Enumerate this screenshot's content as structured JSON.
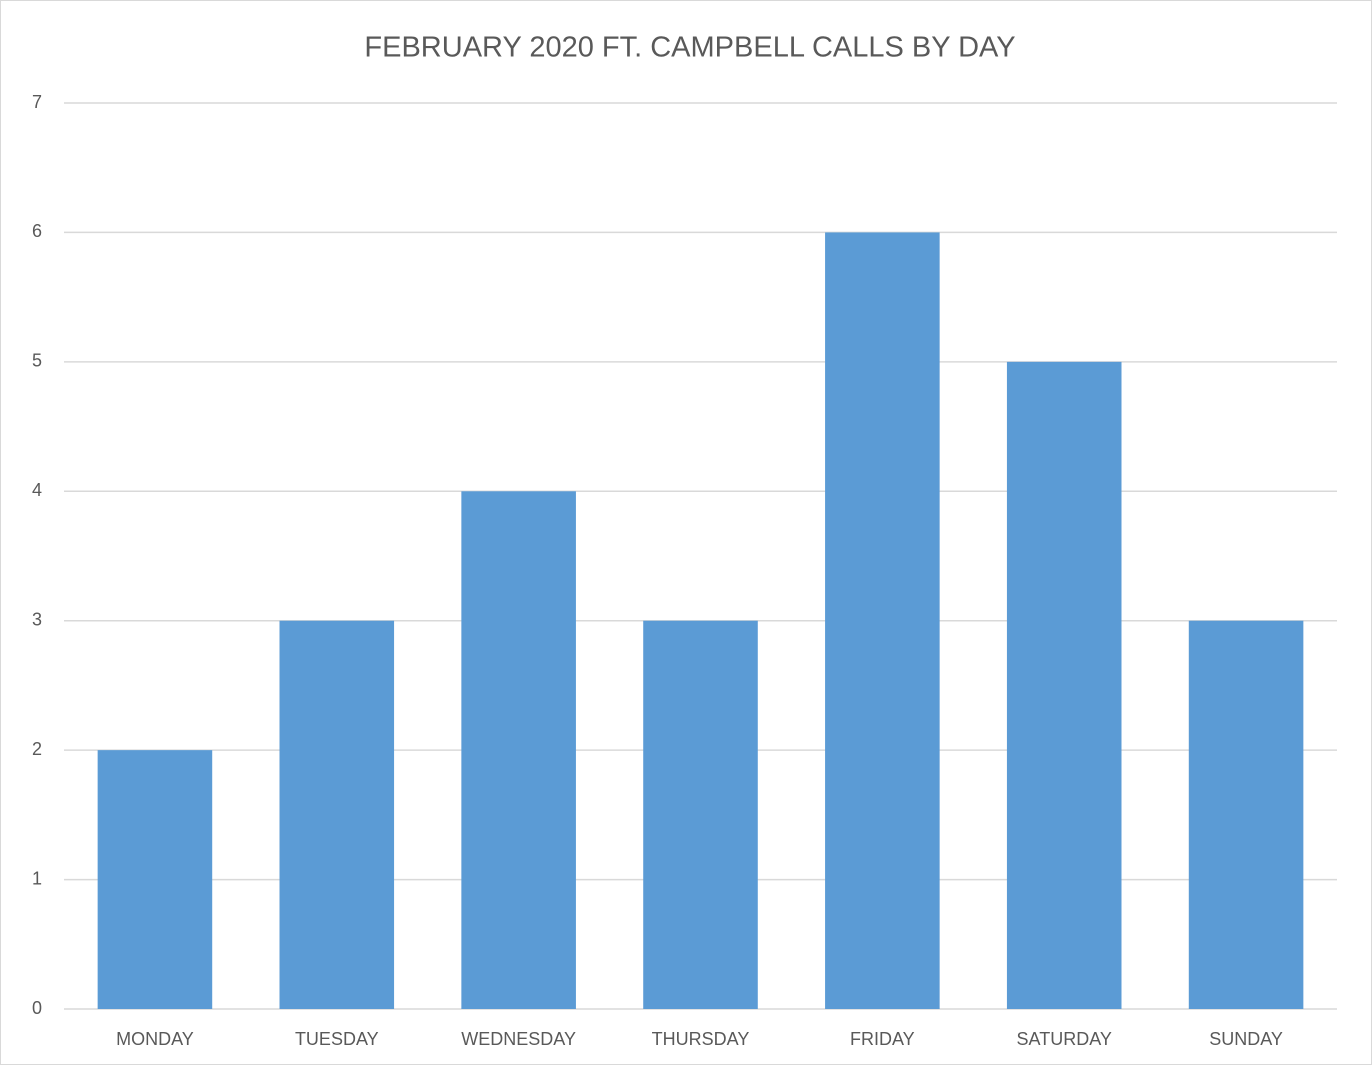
{
  "chart_data": {
    "type": "bar",
    "title": "FEBRUARY 2020 FT. CAMPBELL CALLS BY DAY",
    "categories": [
      "MONDAY",
      "TUESDAY",
      "WEDNESDAY",
      "THURSDAY",
      "FRIDAY",
      "SATURDAY",
      "SUNDAY"
    ],
    "values": [
      2,
      3,
      4,
      3,
      6,
      5,
      3
    ],
    "color": "#5b9bd5",
    "ylim": [
      0,
      7
    ],
    "yticks": [
      0,
      1,
      2,
      3,
      4,
      5,
      6,
      7
    ],
    "grid": true
  }
}
